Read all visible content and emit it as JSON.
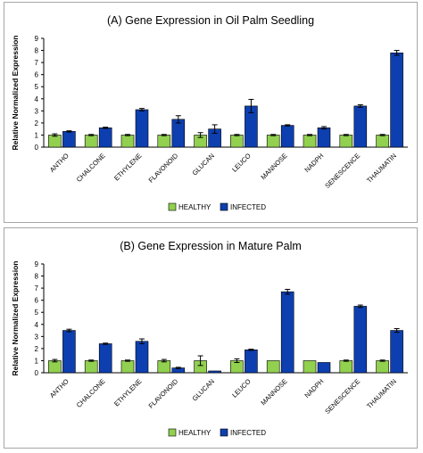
{
  "chart_data": [
    {
      "type": "bar",
      "title": "(A) Gene Expression in Oil Palm Seedling",
      "xlabel": "",
      "ylabel": "Relative Normalized Expression",
      "ylim": [
        0,
        9
      ],
      "yticks": [
        0,
        1,
        2,
        3,
        4,
        5,
        6,
        7,
        8,
        9
      ],
      "grid": false,
      "legend_position": "bottom",
      "categories": [
        "ANTHO",
        "CHALCONE",
        "ETHYLENE",
        "FLAVONOID",
        "GLUCAN",
        "LEUCO",
        "MANNOSE",
        "NADPH",
        "SENESCENCE",
        "THAUMATIN"
      ],
      "series": [
        {
          "name": "HEALTHY",
          "color": "#92d050",
          "values": [
            1.0,
            1.0,
            1.0,
            1.0,
            1.0,
            1.0,
            1.0,
            1.0,
            1.0,
            1.0
          ],
          "errors": [
            0.1,
            0.05,
            0.05,
            0.05,
            0.2,
            0.05,
            0.05,
            0.05,
            0.05,
            0.05
          ]
        },
        {
          "name": "INFECTED",
          "color": "#0d3fb0",
          "values": [
            1.3,
            1.6,
            3.1,
            2.3,
            1.5,
            3.4,
            1.8,
            1.6,
            3.4,
            7.8
          ],
          "errors": [
            0.05,
            0.05,
            0.1,
            0.3,
            0.35,
            0.55,
            0.05,
            0.1,
            0.1,
            0.2
          ]
        }
      ]
    },
    {
      "type": "bar",
      "title": "(B) Gene Expression in Mature Palm",
      "xlabel": "",
      "ylabel": "Relative Normalized Expression",
      "ylim": [
        0,
        9
      ],
      "yticks": [
        0,
        1,
        2,
        3,
        4,
        5,
        6,
        7,
        8,
        9
      ],
      "grid": false,
      "legend_position": "bottom",
      "categories": [
        "ANTHO",
        "CHALCONE",
        "ETHYLENE",
        "FLAVONOID",
        "GLUCAN",
        "LEUCO",
        "MANNOSE",
        "NADPH",
        "SENESCENCE",
        "THAUMATIN"
      ],
      "series": [
        {
          "name": "HEALTHY",
          "color": "#92d050",
          "values": [
            1.0,
            1.0,
            1.0,
            1.0,
            1.0,
            1.0,
            1.0,
            1.0,
            1.0,
            1.0
          ],
          "errors": [
            0.1,
            0.05,
            0.05,
            0.1,
            0.4,
            0.15,
            0.0,
            0.0,
            0.05,
            0.05
          ]
        },
        {
          "name": "INFECTED",
          "color": "#0d3fb0",
          "values": [
            3.5,
            2.4,
            2.6,
            0.4,
            0.15,
            1.9,
            6.7,
            0.85,
            5.5,
            3.5
          ],
          "errors": [
            0.1,
            0.05,
            0.2,
            0.05,
            0.0,
            0.05,
            0.2,
            0.0,
            0.1,
            0.15
          ]
        }
      ]
    }
  ]
}
